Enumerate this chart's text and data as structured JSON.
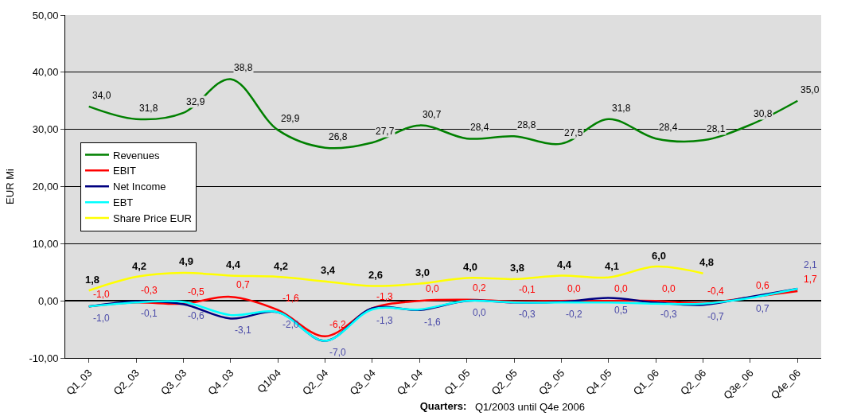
{
  "chart_data": {
    "type": "line",
    "ylabel": "EUR Mi",
    "xlabel": "Quarters:",
    "annotations": [
      "Q1/2003 until Q4e 2006"
    ],
    "categories": [
      "Q1_03",
      "Q2_03",
      "Q3_03",
      "Q4_03",
      "Q1/04",
      "Q2_04",
      "Q3_04",
      "Q4_04",
      "Q1_05",
      "Q2_05",
      "Q3_05",
      "Q4_05",
      "Q1_06",
      "Q2_06",
      "Q3e_06",
      "Q4e_06"
    ],
    "series": [
      {
        "name": "Revenues",
        "color": "#008000",
        "values": [
          34.0,
          31.8,
          32.9,
          38.8,
          29.9,
          26.8,
          27.7,
          30.7,
          28.4,
          28.8,
          27.5,
          31.8,
          28.4,
          28.1,
          30.8,
          35.0
        ],
        "value_labels": [
          "34,0",
          "31,8",
          "32,9",
          "38,8",
          "29,9",
          "26,8",
          "27,7",
          "30,7",
          "28,4",
          "28,8",
          "27,5",
          "31,8",
          "28,4",
          "28,1",
          "30,8",
          "35,0"
        ]
      },
      {
        "name": "EBIT",
        "color": "#ff0000",
        "values": [
          -1.0,
          -0.3,
          -0.5,
          0.7,
          -1.6,
          -6.2,
          -1.3,
          0.0,
          0.2,
          -0.1,
          0.0,
          0.0,
          0.0,
          -0.4,
          0.6,
          1.7
        ],
        "value_labels": [
          "-1,0",
          "-0,3",
          "-0,5",
          "0,7",
          "-1,6",
          "-6,2",
          "-1,3",
          "0,0",
          "0,2",
          "-0,1",
          "0,0",
          "0,0",
          "0,0",
          "-0,4",
          "0,6",
          "1,7"
        ]
      },
      {
        "name": "Net Income",
        "color": "#000080",
        "values": [
          -1.0,
          -0.1,
          -0.6,
          -3.1,
          -2.0,
          -7.0,
          -1.3,
          -1.6,
          0.0,
          -0.3,
          -0.2,
          0.5,
          -0.3,
          -0.7,
          0.7,
          2.1
        ],
        "value_labels": [
          "-1,0",
          "-0,1",
          "-0,6",
          "-3,1",
          "-2,0",
          "-7,0",
          "-1,3",
          "-1,6",
          "0,0",
          "-0,3",
          "-0,2",
          "0,5",
          "-0,3",
          "-0,7",
          "0,7",
          "2,1"
        ]
      },
      {
        "name": "EBT",
        "color": "#00ffff",
        "values": [
          -1.0,
          -0.3,
          -0.2,
          -2.5,
          -2.0,
          -7.0,
          -1.5,
          -1.5,
          0.0,
          -0.3,
          -0.3,
          -0.3,
          -0.5,
          -0.5,
          0.5,
          2.1
        ]
      },
      {
        "name": "Share Price EUR",
        "color": "#ffff00",
        "values": [
          1.8,
          4.2,
          4.9,
          4.4,
          4.2,
          3.4,
          2.6,
          3.0,
          4.0,
          3.8,
          4.4,
          4.1,
          6.0,
          4.8,
          null,
          null
        ],
        "value_labels": [
          "1,8",
          "4,2",
          "4,9",
          "4,4",
          "4,2",
          "3,4",
          "2,6",
          "3,0",
          "4,0",
          "3,8",
          "4,4",
          "4,1",
          "6,0",
          "4,8",
          null,
          null
        ]
      }
    ],
    "ylim": [
      -10,
      50
    ],
    "yticks": [
      {
        "value": -10,
        "label": "-10,00"
      },
      {
        "value": 0,
        "label": "0,00"
      },
      {
        "value": 10,
        "label": "10,00"
      },
      {
        "value": 20,
        "label": "20,00"
      },
      {
        "value": 30,
        "label": "30,00"
      },
      {
        "value": 40,
        "label": "40,00"
      },
      {
        "value": 50,
        "label": "50,00"
      }
    ],
    "grid": "y",
    "legend": "left",
    "marker": "none",
    "line_style": "solid"
  }
}
